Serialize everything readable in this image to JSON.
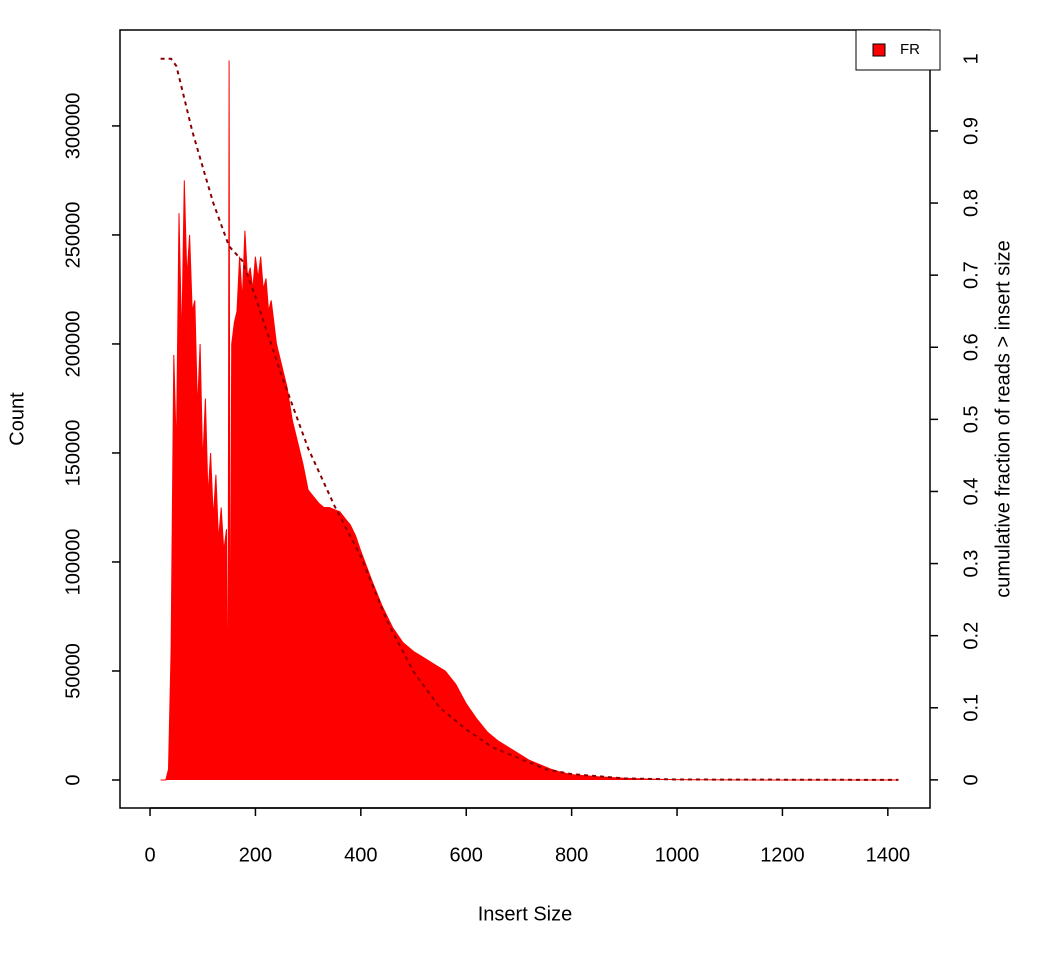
{
  "chart_data": {
    "type": "area",
    "x_label": "Insert Size",
    "y_label": "Count",
    "y2_label": "cumulative fraction of reads > insert size",
    "xlim": [
      -57,
      1480
    ],
    "ylim": [
      -12840,
      344000
    ],
    "y2lim": [
      -0.039,
      1.04
    ],
    "xticks": [
      0,
      200,
      400,
      600,
      800,
      1000,
      1200,
      1400
    ],
    "yticks": [
      0,
      50000,
      100000,
      150000,
      200000,
      250000,
      300000
    ],
    "y2ticks": [
      0,
      0.1,
      0.2,
      0.3,
      0.4,
      0.5,
      0.6,
      0.7,
      0.8,
      0.9,
      1
    ],
    "legend": "top-right",
    "series": [
      {
        "name": "FR",
        "color": "#ff0000",
        "x": [
          20,
          30,
          35,
          40,
          45,
          50,
          55,
          60,
          65,
          70,
          75,
          80,
          85,
          90,
          95,
          100,
          105,
          110,
          115,
          120,
          125,
          130,
          135,
          140,
          145,
          148,
          150,
          152,
          155,
          160,
          165,
          170,
          175,
          180,
          185,
          190,
          195,
          200,
          205,
          210,
          215,
          220,
          225,
          230,
          240,
          250,
          260,
          270,
          280,
          290,
          300,
          310,
          320,
          330,
          340,
          350,
          360,
          370,
          380,
          390,
          400,
          420,
          440,
          460,
          480,
          500,
          520,
          540,
          560,
          580,
          600,
          620,
          640,
          660,
          680,
          700,
          720,
          740,
          760,
          780,
          800,
          850,
          900,
          950,
          1000,
          1100,
          1200,
          1300,
          1420
        ],
        "values": [
          0,
          0,
          5000,
          60000,
          195000,
          150000,
          260000,
          200000,
          275000,
          230000,
          250000,
          215000,
          220000,
          170000,
          200000,
          145000,
          175000,
          130000,
          150000,
          120000,
          140000,
          110000,
          125000,
          105000,
          115000,
          15000,
          330000,
          15000,
          200000,
          210000,
          215000,
          240000,
          220000,
          252000,
          230000,
          235000,
          225000,
          240000,
          230000,
          240000,
          225000,
          230000,
          215000,
          220000,
          200000,
          190000,
          180000,
          165000,
          155000,
          145000,
          133000,
          130000,
          127000,
          125000,
          125000,
          124000,
          123000,
          120000,
          117000,
          112000,
          105000,
          92000,
          80000,
          70000,
          63000,
          59000,
          56000,
          53000,
          50000,
          44000,
          35000,
          28000,
          22000,
          18000,
          15000,
          12000,
          9000,
          7000,
          5000,
          3500,
          2500,
          1500,
          800,
          400,
          200,
          50,
          0,
          0,
          0
        ]
      },
      {
        "color": "#8b0000",
        "axis": "y2",
        "dashed": true,
        "x": [
          20,
          40,
          50,
          60,
          80,
          100,
          120,
          140,
          150,
          175,
          200,
          250,
          300,
          350,
          400,
          450,
          500,
          550,
          600,
          650,
          700,
          750,
          800,
          900,
          1000,
          1420
        ],
        "values": [
          1,
          1,
          0.99,
          0.96,
          0.9,
          0.85,
          0.8,
          0.76,
          0.74,
          0.72,
          0.67,
          0.56,
          0.46,
          0.38,
          0.31,
          0.22,
          0.15,
          0.1,
          0.07,
          0.045,
          0.03,
          0.015,
          0.008,
          0.002,
          0.0005,
          0
        ]
      }
    ]
  }
}
